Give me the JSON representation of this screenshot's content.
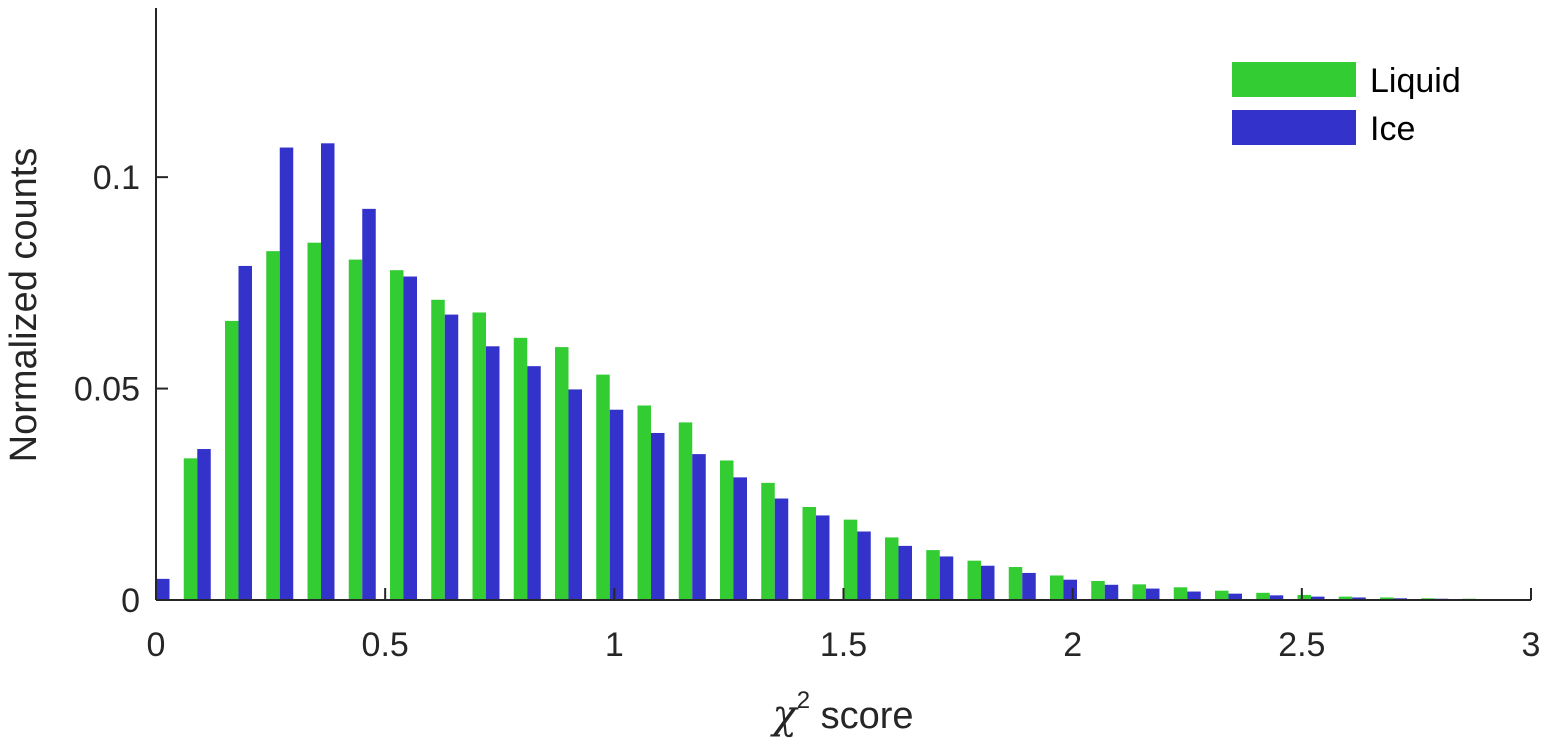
{
  "chart_data": {
    "type": "bar",
    "title": "",
    "xlabel": {
      "symbol": "χ",
      "superscript": "2",
      "text": " score"
    },
    "ylabel": "Normalized counts",
    "xlim": [
      0,
      3
    ],
    "ylim": [
      0,
      0.14
    ],
    "xticks": [
      0,
      0.5,
      1,
      1.5,
      2,
      2.5,
      3
    ],
    "xtick_labels": [
      "0",
      "0.5",
      "1",
      "1.5",
      "2",
      "2.5",
      "3"
    ],
    "yticks": [
      0,
      0.05,
      0.1
    ],
    "ytick_labels": [
      "0",
      "0.05",
      "0.1"
    ],
    "grid": false,
    "legend": "top-right",
    "bin_width": 0.09,
    "x": [
      0,
      0.09,
      0.18,
      0.27,
      0.36,
      0.45,
      0.54,
      0.63,
      0.72,
      0.81,
      0.9,
      0.99,
      1.08,
      1.17,
      1.26,
      1.35,
      1.44,
      1.53,
      1.62,
      1.71,
      1.8,
      1.89,
      1.98,
      2.07,
      2.16,
      2.25,
      2.34,
      2.43,
      2.52,
      2.61,
      2.7,
      2.79,
      2.88,
      2.97
    ],
    "series": [
      {
        "name": "Liquid",
        "color": "#33cc33",
        "values": [
          0.0,
          0.0335,
          0.066,
          0.0825,
          0.0845,
          0.0805,
          0.078,
          0.071,
          0.068,
          0.062,
          0.0598,
          0.0533,
          0.046,
          0.042,
          0.033,
          0.0277,
          0.022,
          0.019,
          0.0148,
          0.0118,
          0.0093,
          0.0078,
          0.0058,
          0.0045,
          0.0037,
          0.003,
          0.0022,
          0.0017,
          0.0012,
          0.0008,
          0.0006,
          0.0004,
          0.0003,
          0.0002
        ]
      },
      {
        "name": "Ice",
        "color": "#3333cc",
        "values": [
          0.005,
          0.0357,
          0.079,
          0.107,
          0.108,
          0.0925,
          0.0765,
          0.0675,
          0.06,
          0.0553,
          0.0498,
          0.045,
          0.0395,
          0.0345,
          0.029,
          0.024,
          0.02,
          0.0162,
          0.0128,
          0.0103,
          0.0081,
          0.0064,
          0.0048,
          0.0036,
          0.0027,
          0.002,
          0.0015,
          0.0011,
          0.0008,
          0.0006,
          0.0004,
          0.0003,
          0.0002,
          0.0001
        ]
      }
    ]
  }
}
